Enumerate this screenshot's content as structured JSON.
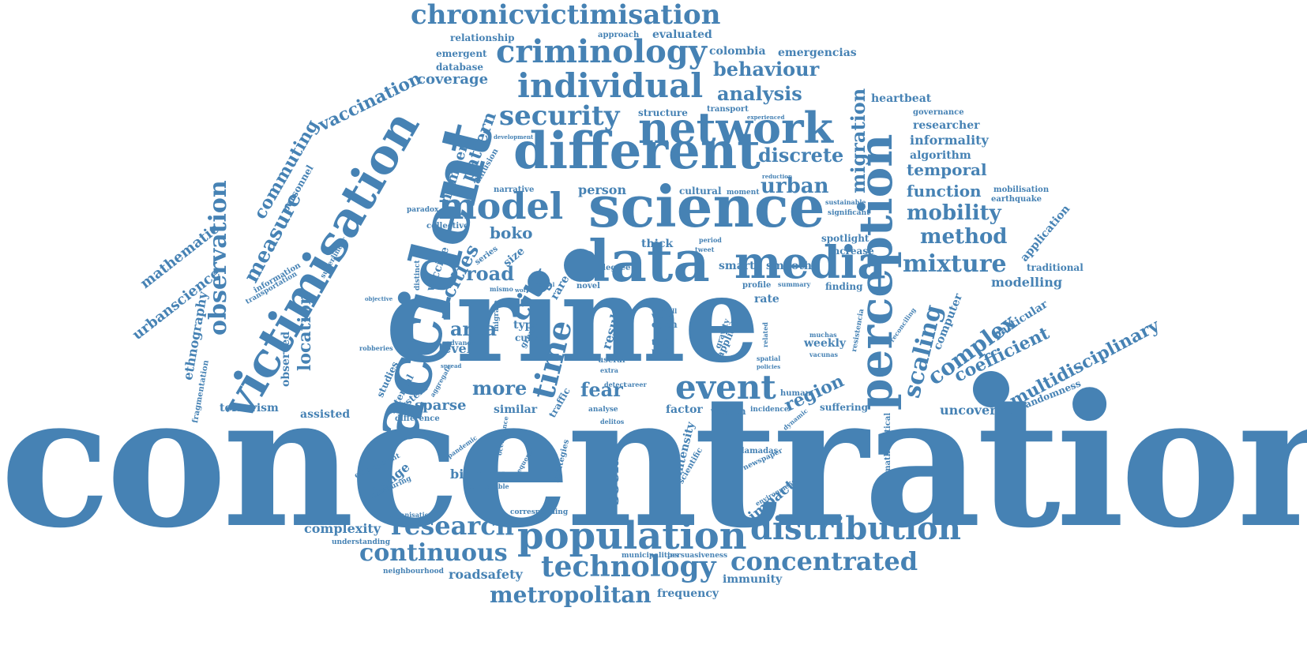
{
  "color": "#4682b4",
  "words": [
    {
      "text": "concentration",
      "weight": 230
    },
    {
      "text": "crime",
      "weight": 150
    },
    {
      "text": "accident",
      "weight": 86
    },
    {
      "text": "science",
      "weight": 72
    },
    {
      "text": "data",
      "weight": 72
    },
    {
      "text": "different",
      "weight": 64
    },
    {
      "text": "victimisation",
      "weight": 60
    },
    {
      "text": "perception",
      "weight": 58
    },
    {
      "text": "media",
      "weight": 56
    },
    {
      "text": "network",
      "weight": 54
    },
    {
      "text": "population",
      "weight": 48
    },
    {
      "text": "model",
      "weight": 46
    },
    {
      "text": "event",
      "weight": 42
    },
    {
      "text": "individual",
      "weight": 42
    },
    {
      "text": "criminology",
      "weight": 40
    },
    {
      "text": "distribution",
      "weight": 40
    },
    {
      "text": "time",
      "weight": 40
    },
    {
      "text": "technology",
      "weight": 36
    },
    {
      "text": "chronicvictimisation",
      "weight": 34
    },
    {
      "text": "security",
      "weight": 34
    },
    {
      "text": "city",
      "weight": 34
    },
    {
      "text": "research",
      "weight": 32
    },
    {
      "text": "concentrated",
      "weight": 32
    },
    {
      "text": "continuous",
      "weight": 30
    },
    {
      "text": "mixture",
      "weight": 30
    },
    {
      "text": "observation",
      "weight": 30
    },
    {
      "text": "scaling",
      "weight": 30
    },
    {
      "text": "complex",
      "weight": 28
    },
    {
      "text": "metropolitan",
      "weight": 28
    },
    {
      "text": "measure",
      "weight": 26
    },
    {
      "text": "mobility",
      "weight": 26
    },
    {
      "text": "urban",
      "weight": 26
    },
    {
      "text": "method",
      "weight": 26
    },
    {
      "text": "discrete",
      "weight": 24
    },
    {
      "text": "behaviour",
      "weight": 24
    },
    {
      "text": "analysis",
      "weight": 24
    },
    {
      "text": "migration",
      "weight": 24
    },
    {
      "text": "area",
      "weight": 24
    },
    {
      "text": "road",
      "weight": 24
    },
    {
      "text": "more",
      "weight": 24
    },
    {
      "text": "fear",
      "weight": 24
    },
    {
      "text": "cities",
      "weight": 24
    },
    {
      "text": "region",
      "weight": 22
    },
    {
      "text": "social",
      "weight": 22
    },
    {
      "text": "coefficient",
      "weight": 22
    },
    {
      "text": "multidisciplinary",
      "weight": 22
    },
    {
      "text": "location",
      "weight": 22
    },
    {
      "text": "vaccination",
      "weight": 22
    },
    {
      "text": "commuting",
      "weight": 22
    },
    {
      "text": "pattern",
      "weight": 22
    },
    {
      "text": "boko",
      "weight": 20
    },
    {
      "text": "temporal",
      "weight": 20
    },
    {
      "text": "function",
      "weight": 20
    },
    {
      "text": "coverage",
      "weight": 18
    },
    {
      "text": "number",
      "weight": 18
    },
    {
      "text": "sparse",
      "weight": 18
    },
    {
      "text": "modelling",
      "weight": 16
    },
    {
      "text": "impact",
      "weight": 18
    },
    {
      "text": "change",
      "weight": 16
    },
    {
      "text": "binning",
      "weight": 16
    },
    {
      "text": "roadsafety",
      "weight": 16
    },
    {
      "text": "complexity",
      "weight": 16
    },
    {
      "text": "urbanscience",
      "weight": 18
    },
    {
      "text": "mathematic",
      "weight": 18
    },
    {
      "text": "ethnography",
      "weight": 16
    },
    {
      "text": "uncovering",
      "weight": 16
    },
    {
      "text": "level",
      "weight": 16
    },
    {
      "text": "result",
      "weight": 16
    },
    {
      "text": "weekly",
      "weight": 14
    },
    {
      "text": "intensity",
      "weight": 14
    },
    {
      "text": "vaccine",
      "weight": 14
    },
    {
      "text": "person",
      "weight": 16
    },
    {
      "text": "informality",
      "weight": 16
    },
    {
      "text": "researcher",
      "weight": 14
    },
    {
      "text": "algorithm",
      "weight": 14
    },
    {
      "text": "heartbeat",
      "weight": 14
    },
    {
      "text": "evaluated",
      "weight": 14
    },
    {
      "text": "colombia",
      "weight": 14
    },
    {
      "text": "emergencias",
      "weight": 14
    },
    {
      "text": "relationship",
      "weight": 12
    },
    {
      "text": "emergent",
      "weight": 12
    },
    {
      "text": "database",
      "weight": 12
    },
    {
      "text": "smart",
      "weight": 14
    },
    {
      "text": "smooth",
      "weight": 14
    },
    {
      "text": "thick",
      "weight": 14
    },
    {
      "text": "factor",
      "weight": 14
    },
    {
      "text": "wealth",
      "weight": 12
    },
    {
      "text": "suffering",
      "weight": 12
    },
    {
      "text": "terrorism",
      "weight": 14
    },
    {
      "text": "assisted",
      "weight": 14
    },
    {
      "text": "observed",
      "weight": 14
    },
    {
      "text": "similar",
      "weight": 14
    },
    {
      "text": "traffic",
      "weight": 12
    },
    {
      "text": "application",
      "weight": 14
    },
    {
      "text": "traditional",
      "weight": 12
    },
    {
      "text": "particular",
      "weight": 14
    },
    {
      "text": "randomness",
      "weight": 12
    },
    {
      "text": "computer",
      "weight": 14
    },
    {
      "text": "frequency",
      "weight": 14
    },
    {
      "text": "immunity",
      "weight": 14
    },
    {
      "text": "spotlight",
      "weight": 12
    },
    {
      "text": "increase",
      "weight": 12
    },
    {
      "text": "finding",
      "weight": 12
    },
    {
      "text": "mathematical",
      "weight": 10
    },
    {
      "text": "personnel",
      "weight": 12
    },
    {
      "text": "cultural",
      "weight": 12
    },
    {
      "text": "structure",
      "weight": 12
    },
    {
      "text": "transport",
      "weight": 10
    },
    {
      "text": "governance",
      "weight": 10
    },
    {
      "text": "mobilisation",
      "weight": 10
    },
    {
      "text": "earthquake",
      "weight": 10
    },
    {
      "text": "significant",
      "weight": 9
    },
    {
      "text": "sustainable",
      "weight": 8
    },
    {
      "text": "approach",
      "weight": 10
    },
    {
      "text": "diffusion",
      "weight": 10
    },
    {
      "text": "narrative",
      "weight": 10
    },
    {
      "text": "collective",
      "weight": 10
    },
    {
      "text": "paradox",
      "weight": 9
    },
    {
      "text": "information",
      "weight": 10
    },
    {
      "text": "transportation",
      "weight": 9
    },
    {
      "text": "superlinear",
      "weight": 9
    },
    {
      "text": "fragmentation",
      "weight": 10
    },
    {
      "text": "internal",
      "weight": 12
    },
    {
      "text": "studies",
      "weight": 12
    },
    {
      "text": "system",
      "weight": 12
    },
    {
      "text": "difference",
      "weight": 10
    },
    {
      "text": "employment",
      "weight": 9
    },
    {
      "text": "measuring",
      "weight": 9
    },
    {
      "text": "organisation",
      "weight": 8
    },
    {
      "text": "understanding",
      "weight": 9
    },
    {
      "text": "neighbourhood",
      "weight": 9
    },
    {
      "text": "corresponding",
      "weight": 9
    },
    {
      "text": "comparable",
      "weight": 8
    },
    {
      "text": "municipalities",
      "weight": 9
    },
    {
      "text": "persuasiveness",
      "weight": 9
    },
    {
      "text": "strategies",
      "weight": 10
    },
    {
      "text": "scientific",
      "weight": 10
    },
    {
      "text": "llamadas",
      "weight": 10
    },
    {
      "text": "newspaper",
      "weight": 9
    },
    {
      "text": "environment",
      "weight": 8
    },
    {
      "text": "incidence",
      "weight": 9
    },
    {
      "text": "human",
      "weight": 10
    },
    {
      "text": "dynamic",
      "weight": 8
    },
    {
      "text": "profile",
      "weight": 10
    },
    {
      "text": "summary",
      "weight": 8
    },
    {
      "text": "rate",
      "weight": 14
    },
    {
      "text": "applied",
      "weight": 12
    },
    {
      "text": "gravity",
      "weight": 10
    },
    {
      "text": "view",
      "weight": 10
    },
    {
      "text": "open",
      "weight": 12
    },
    {
      "text": "topic",
      "weight": 10
    },
    {
      "text": "peak",
      "weight": 10
    },
    {
      "text": "useful",
      "weight": 10
    },
    {
      "text": "extra",
      "weight": 8
    },
    {
      "text": "type",
      "weight": 14
    },
    {
      "text": "curve",
      "weight": 12
    },
    {
      "text": "advance",
      "weight": 8
    },
    {
      "text": "group",
      "weight": 10
    },
    {
      "text": "size",
      "weight": 14
    },
    {
      "text": "series",
      "weight": 10
    },
    {
      "text": "rare",
      "weight": 14
    },
    {
      "text": "degree",
      "weight": 10
    },
    {
      "text": "novel",
      "weight": 10
    },
    {
      "text": "mismo",
      "weight": 8
    },
    {
      "text": "distinct",
      "weight": 9
    },
    {
      "text": "migrate",
      "weight": 9
    },
    {
      "text": "detect",
      "weight": 8
    },
    {
      "text": "career",
      "weight": 8
    },
    {
      "text": "analyse",
      "weight": 9
    },
    {
      "text": "delitos",
      "weight": 8
    },
    {
      "text": "muchas",
      "weight": 8
    },
    {
      "text": "vacunas",
      "weight": 8
    },
    {
      "text": "resistencia",
      "weight": 9
    },
    {
      "text": "reconciling",
      "weight": 8
    },
    {
      "text": "occurrence",
      "weight": 8
    },
    {
      "text": "sequence",
      "weight": 8
    },
    {
      "text": "pandemic",
      "weight": 8
    },
    {
      "text": "robberies",
      "weight": 8
    },
    {
      "text": "objective",
      "weight": 7
    },
    {
      "text": "aggregate",
      "weight": 8
    },
    {
      "text": "spread",
      "weight": 7
    },
    {
      "text": "moment",
      "weight": 9
    },
    {
      "text": "period",
      "weight": 8
    },
    {
      "text": "tweet",
      "weight": 8
    },
    {
      "text": "experienced",
      "weight": 7
    },
    {
      "text": "development",
      "weight": 7
    },
    {
      "text": "reduction",
      "weight": 7
    },
    {
      "text": "related",
      "weight": 8
    },
    {
      "text": "spatial",
      "weight": 8
    },
    {
      "text": "policies",
      "weight": 7
    },
    {
      "text": "skill",
      "weight": 8
    },
    {
      "text": "actual",
      "weight": 7
    },
    {
      "text": "world",
      "weight": 7
    }
  ]
}
